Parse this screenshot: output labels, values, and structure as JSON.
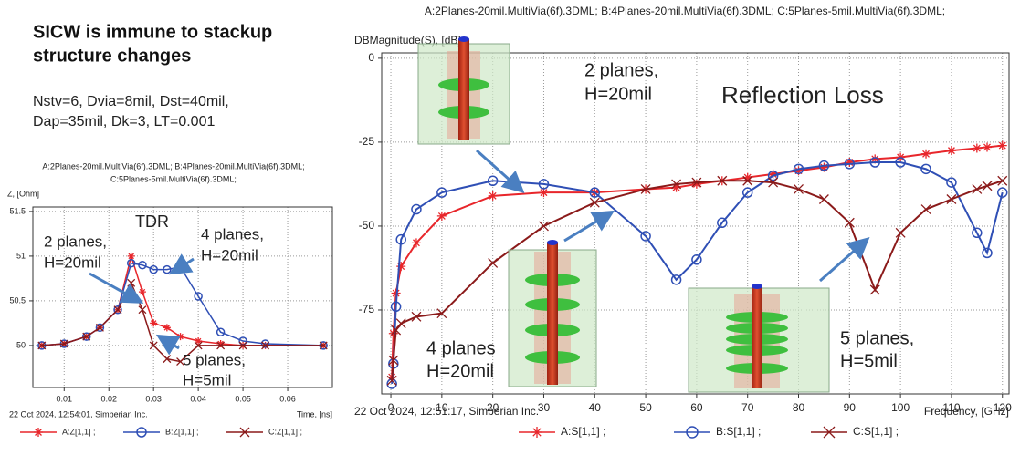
{
  "slide": {
    "title": [
      "SICW is immune to stackup",
      "structure changes"
    ],
    "parameters": [
      "Nstv=6, Dvia=8mil, Dst=40mil,",
      "Dap=35mil, Dk=3, LT=0.001"
    ]
  },
  "chart_data": [
    {
      "type": "line",
      "title": [
        "A:2Planes-20mil.MultiVia(6f).3DML; B:4Planes-20mil.MultiVia(6f).3DML;",
        "C:5Planes-5mil.MultiVia(6f).3DML;"
      ],
      "y_label": "Z, [Ohm]",
      "x_label": "Time, [ns]",
      "footer": "22 Oct 2024, 12:54:01, Simberian Inc.",
      "x": [
        0.005,
        0.01,
        0.015,
        0.018,
        0.022,
        0.025,
        0.0275,
        0.03,
        0.033,
        0.036,
        0.04,
        0.045,
        0.05,
        0.055,
        0.068
      ],
      "series": [
        {
          "name": "A:Z[1,1] ;",
          "color": "#e8262b",
          "marker": "asterisk",
          "values": [
            50,
            50.02,
            50.1,
            50.2,
            50.4,
            51.0,
            50.6,
            50.25,
            50.2,
            50.1,
            50.05,
            50.02,
            50,
            50,
            50
          ]
        },
        {
          "name": "B:Z[1,1] ;",
          "color": "#2f4fb5",
          "marker": "circle",
          "values": [
            50,
            50.02,
            50.1,
            50.2,
            50.4,
            50.92,
            50.9,
            50.85,
            50.85,
            50.88,
            50.55,
            50.15,
            50.05,
            50.02,
            50
          ]
        },
        {
          "name": "C:Z[1,1] ;",
          "color": "#8b1a1a",
          "marker": "cross",
          "values": [
            50,
            50.02,
            50.1,
            50.2,
            50.4,
            50.7,
            50.4,
            50.0,
            49.85,
            49.82,
            50.0,
            50.0,
            50,
            50,
            50
          ]
        }
      ],
      "xlim": [
        0.003,
        0.07
      ],
      "xticks": [
        0.01,
        0.02,
        0.03,
        0.04,
        0.05,
        0.06
      ],
      "ylim": [
        49.53,
        51.55
      ],
      "yticks": [
        50,
        50.5,
        51,
        51.5
      ],
      "grid": true,
      "annotations": [
        "TDR",
        "2 planes,",
        "H=20mil",
        "4 planes,",
        "H=20mil",
        "5 planes,",
        "H=5mil"
      ]
    },
    {
      "type": "line",
      "title": [
        "A:2Planes-20mil.MultiVia(6f).3DML; B:4Planes-20mil.MultiVia(6f).3DML; C:5Planes-5mil.MultiVia(6f).3DML;"
      ],
      "y_label": "DBMagnitude(S), [dB]",
      "x_label": "Frequency, [GHz]",
      "footer": "22 Oct 2024, 12:51:17, Simberian Inc.",
      "x": [
        0.2,
        0.5,
        1,
        2,
        5,
        10,
        20,
        30,
        40,
        50,
        56,
        60,
        65,
        70,
        75,
        80,
        85,
        90,
        95,
        100,
        105,
        110,
        115,
        117,
        120
      ],
      "series": [
        {
          "name": "A:S[1,1] ;",
          "color": "#e8262b",
          "marker": "asterisk",
          "values": [
            -95,
            -82,
            -70,
            -62,
            -55,
            -47,
            -41,
            -40,
            -40,
            -39,
            -38.5,
            -37.5,
            -36.5,
            -35.5,
            -34.5,
            -33.5,
            -32.5,
            -31,
            -30,
            -29.5,
            -28.5,
            -27.5,
            -26.8,
            -26.5,
            -26
          ]
        },
        {
          "name": "B:S[1,1] ;",
          "color": "#2f4fb5",
          "marker": "circle",
          "values": [
            -97,
            -91,
            -74,
            -54,
            -45,
            -40,
            -36.5,
            -37.5,
            -40,
            -53,
            -66,
            -60,
            -49,
            -40,
            -35,
            -33,
            -32,
            -31.5,
            -31,
            -31,
            -33,
            -37,
            -52,
            -58,
            -40
          ]
        },
        {
          "name": "C:S[1,1] ;",
          "color": "#8b1a1a",
          "marker": "cross",
          "values": [
            -96,
            -90,
            -81,
            -79,
            -77,
            -76,
            -61,
            -50,
            -43,
            -39,
            -37.5,
            -37,
            -36.5,
            -36.5,
            -37,
            -39,
            -42,
            -49,
            -69,
            -52,
            -45,
            -42,
            -39,
            -38,
            -36.5
          ]
        }
      ],
      "xlim": [
        -1.8,
        121.3
      ],
      "xticks": [
        0,
        10,
        20,
        30,
        40,
        50,
        60,
        70,
        80,
        90,
        100,
        110,
        120
      ],
      "ylim": [
        -100,
        1.6
      ],
      "yticks": [
        -75,
        -50,
        -25,
        0
      ],
      "grid": true,
      "annotations": [
        "Reflection Loss",
        "2 planes,",
        "H=20mil",
        "4 planes",
        "H=20mil",
        "5 planes,",
        "H=5mil"
      ]
    }
  ]
}
